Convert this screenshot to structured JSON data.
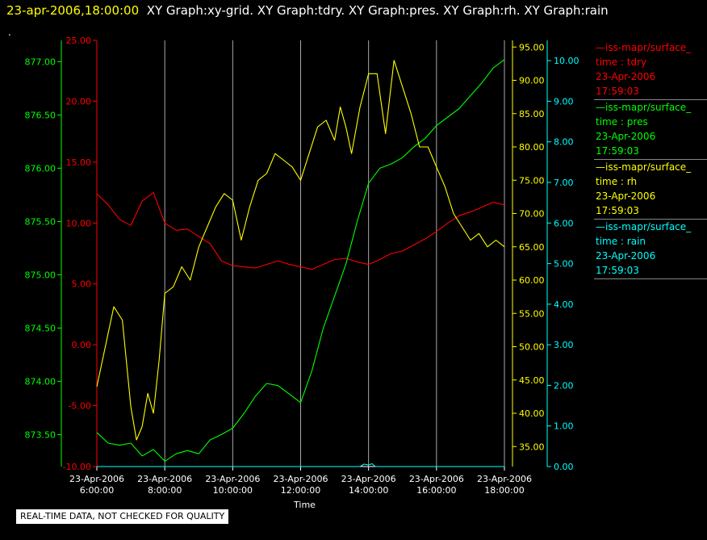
{
  "header": {
    "timestamp": "23-apr-2006,18:00:00",
    "graphs": "XY Graph:xy-grid.  XY Graph:tdry.  XY Graph:pres.  XY Graph:rh.  XY Graph:rain",
    "dot": "."
  },
  "notice": "REAL-TIME DATA, NOT CHECKED FOR QUALITY",
  "colors": {
    "tdry": "#ff0000",
    "pres": "#00ff00",
    "rh": "#ffff00",
    "rain": "#00ffff",
    "grid": "#ffffff",
    "background": "#000000"
  },
  "legend": [
    {
      "line": "—iss-mapr/surface_",
      "var": "time : tdry",
      "date": "23-Apr-2006",
      "time": "17:59:03",
      "color": "#ff0000"
    },
    {
      "line": "—iss-mapr/surface_",
      "var": "time : pres",
      "date": "23-Apr-2006",
      "time": "17:59:03",
      "color": "#00ff00"
    },
    {
      "line": "—iss-mapr/surface_",
      "var": "time : rh",
      "date": "23-Apr-2006",
      "time": "17:59:03",
      "color": "#ffff00"
    },
    {
      "line": "—iss-mapr/surface_",
      "var": "time : rain",
      "date": "23-Apr-2006",
      "time": "17:59:03",
      "color": "#00ffff"
    }
  ],
  "chart_data": {
    "type": "line",
    "xlabel": "Time",
    "xlim": [
      "2006-04-23 06:00:00",
      "2006-04-23 18:00:00"
    ],
    "xticks": [
      {
        "date": "23-Apr-2006",
        "time": "6:00:00"
      },
      {
        "date": "23-Apr-2006",
        "time": "8:00:00"
      },
      {
        "date": "23-Apr-2006",
        "time": "10:00:00"
      },
      {
        "date": "23-Apr-2006",
        "time": "12:00:00"
      },
      {
        "date": "23-Apr-2006",
        "time": "14:00:00"
      },
      {
        "date": "23-Apr-2006",
        "time": "16:00:00"
      },
      {
        "date": "23-Apr-2006",
        "time": "18:00:00"
      }
    ],
    "grid": "vertical",
    "axes": {
      "tdry": {
        "ylim": [
          -10,
          25
        ],
        "ticks": [
          "25.00",
          "20.00",
          "15.00",
          "10.00",
          "5.00",
          "0.00",
          "-5.00",
          "-10.00"
        ]
      },
      "pres": {
        "ylim": [
          873.2,
          877.2
        ],
        "ticks": [
          "877.00",
          "876.50",
          "876.00",
          "875.50",
          "875.00",
          "874.50",
          "874.00",
          "873.50"
        ]
      },
      "rh": {
        "ylim": [
          32,
          96
        ],
        "ticks": [
          "95.00",
          "90.00",
          "85.00",
          "80.00",
          "75.00",
          "70.00",
          "65.00",
          "60.00",
          "55.00",
          "50.00",
          "45.00",
          "40.00",
          "35.00"
        ]
      },
      "rain": {
        "ylim": [
          0,
          10.5
        ],
        "ticks": [
          "10.00",
          "9.00",
          "8.00",
          "7.00",
          "6.00",
          "5.00",
          "4.00",
          "3.00",
          "2.00",
          "1.00",
          "0.00"
        ]
      }
    },
    "series": [
      {
        "name": "tdry",
        "color": "#ff0000",
        "x": [
          "06:00",
          "06:20",
          "06:40",
          "07:00",
          "07:20",
          "07:40",
          "08:00",
          "08:20",
          "08:40",
          "09:00",
          "09:20",
          "09:40",
          "10:00",
          "10:20",
          "10:40",
          "11:00",
          "11:20",
          "11:40",
          "12:00",
          "12:20",
          "12:40",
          "13:00",
          "13:20",
          "13:40",
          "14:00",
          "14:20",
          "14:40",
          "15:00",
          "15:20",
          "15:40",
          "16:00",
          "16:20",
          "16:40",
          "17:00",
          "17:20",
          "17:40",
          "18:00"
        ],
        "y": [
          12.4,
          11.5,
          10.3,
          9.8,
          11.8,
          12.5,
          10.0,
          9.4,
          9.5,
          8.9,
          8.3,
          6.9,
          6.5,
          6.4,
          6.3,
          6.6,
          6.9,
          6.6,
          6.4,
          6.2,
          6.6,
          7.0,
          7.1,
          6.8,
          6.6,
          7.0,
          7.5,
          7.7,
          8.2,
          8.7,
          9.3,
          10.0,
          10.6,
          10.9,
          11.3,
          11.7,
          11.5
        ]
      },
      {
        "name": "pres",
        "color": "#00ff00",
        "x": [
          "06:00",
          "06:20",
          "06:40",
          "07:00",
          "07:20",
          "07:40",
          "08:00",
          "08:20",
          "08:40",
          "09:00",
          "09:20",
          "09:40",
          "10:00",
          "10:20",
          "10:40",
          "11:00",
          "11:20",
          "11:40",
          "12:00",
          "12:20",
          "12:40",
          "13:00",
          "13:20",
          "13:40",
          "14:00",
          "14:20",
          "14:40",
          "15:00",
          "15:20",
          "15:40",
          "16:00",
          "16:20",
          "16:40",
          "17:00",
          "17:20",
          "17:40",
          "18:00"
        ],
        "y": [
          873.52,
          873.42,
          873.4,
          873.42,
          873.3,
          873.36,
          873.25,
          873.32,
          873.35,
          873.32,
          873.45,
          873.5,
          873.56,
          873.7,
          873.86,
          873.98,
          873.96,
          873.88,
          873.8,
          874.1,
          874.5,
          874.8,
          875.1,
          875.5,
          875.86,
          876.0,
          876.04,
          876.1,
          876.2,
          876.28,
          876.4,
          876.48,
          876.56,
          876.68,
          876.8,
          876.94,
          877.02
        ]
      },
      {
        "name": "rh",
        "color": "#ffff00",
        "x": [
          "06:00",
          "06:15",
          "06:30",
          "06:45",
          "07:00",
          "07:10",
          "07:20",
          "07:30",
          "07:40",
          "07:50",
          "08:00",
          "08:15",
          "08:30",
          "08:45",
          "09:00",
          "09:15",
          "09:30",
          "09:45",
          "10:00",
          "10:15",
          "10:30",
          "10:45",
          "11:00",
          "11:15",
          "11:30",
          "11:45",
          "12:00",
          "12:15",
          "12:30",
          "12:45",
          "13:00",
          "13:10",
          "13:20",
          "13:30",
          "13:45",
          "14:00",
          "14:15",
          "14:30",
          "14:45",
          "15:00",
          "15:15",
          "15:30",
          "15:45",
          "16:00",
          "16:15",
          "16:30",
          "16:45",
          "17:00",
          "17:15",
          "17:30",
          "17:45",
          "18:00"
        ],
        "y": [
          44,
          50,
          56,
          54,
          41,
          36,
          38,
          43,
          40,
          48,
          58,
          59,
          62,
          60,
          65,
          68,
          71,
          73,
          72,
          66,
          71,
          75,
          76,
          79,
          78,
          77,
          75,
          79,
          83,
          84,
          81,
          86,
          83,
          79,
          86,
          91,
          91,
          82,
          93,
          89,
          85,
          80,
          80,
          77,
          74,
          70,
          68,
          66,
          67,
          65,
          66,
          65
        ]
      },
      {
        "name": "rain",
        "color": "#00ffff",
        "x": [
          "06:00",
          "13:45",
          "13:52",
          "14:00",
          "14:06",
          "14:12",
          "18:00"
        ],
        "y": [
          0,
          0,
          0.06,
          0.04,
          0.07,
          0,
          0
        ]
      }
    ]
  }
}
